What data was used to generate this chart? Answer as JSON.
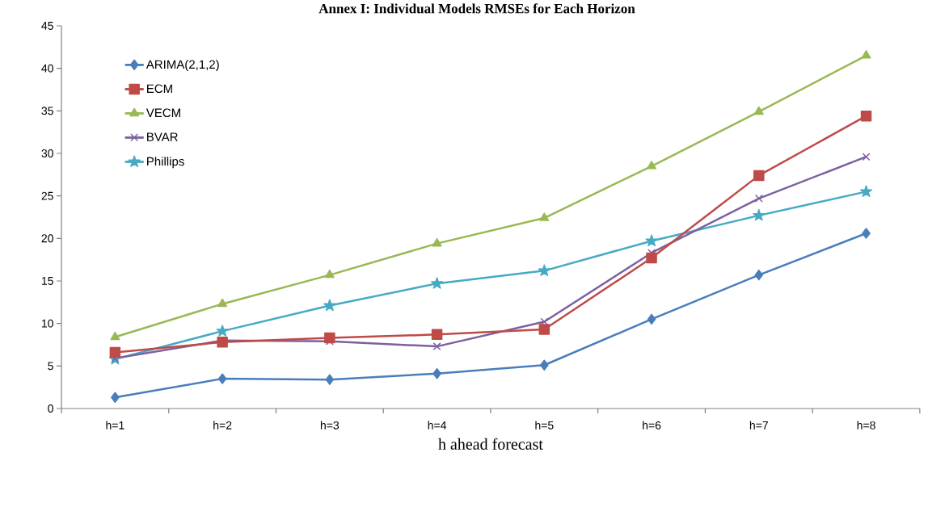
{
  "chart_data": {
    "type": "line",
    "title": "Annex I: Individual Models RMSEs for Each Horizon",
    "xlabel": "h ahead forecast",
    "categories": [
      "h=1",
      "h=2",
      "h=3",
      "h=4",
      "h=5",
      "h=6",
      "h=7",
      "h=8"
    ],
    "series": [
      {
        "name": "ARIMA(2,1,2)",
        "color": "#4a7ebb",
        "marker": "diamond",
        "values": [
          1.3,
          3.5,
          3.4,
          4.1,
          5.1,
          10.5,
          15.7,
          20.6
        ]
      },
      {
        "name": "ECM",
        "color": "#be4b48",
        "marker": "square",
        "values": [
          6.6,
          7.8,
          8.3,
          8.7,
          9.3,
          17.7,
          27.4,
          34.4
        ]
      },
      {
        "name": "VECM",
        "color": "#98b954",
        "marker": "triangle",
        "values": [
          8.4,
          12.3,
          15.7,
          19.4,
          22.4,
          28.5,
          34.9,
          41.5
        ]
      },
      {
        "name": "BVAR",
        "color": "#7d60a0",
        "marker": "cross",
        "values": [
          5.9,
          8.0,
          7.9,
          7.3,
          10.2,
          18.3,
          24.7,
          29.6
        ]
      },
      {
        "name": "Phillips",
        "color": "#46aac5",
        "marker": "star",
        "values": [
          5.8,
          9.1,
          12.1,
          14.7,
          16.2,
          19.7,
          22.7,
          25.5
        ]
      }
    ],
    "ylim": [
      0,
      45
    ],
    "yticks": [
      0,
      5,
      10,
      15,
      20,
      25,
      30,
      35,
      40,
      45
    ],
    "grid": false,
    "legend": "top left",
    "line_style": "solid"
  }
}
